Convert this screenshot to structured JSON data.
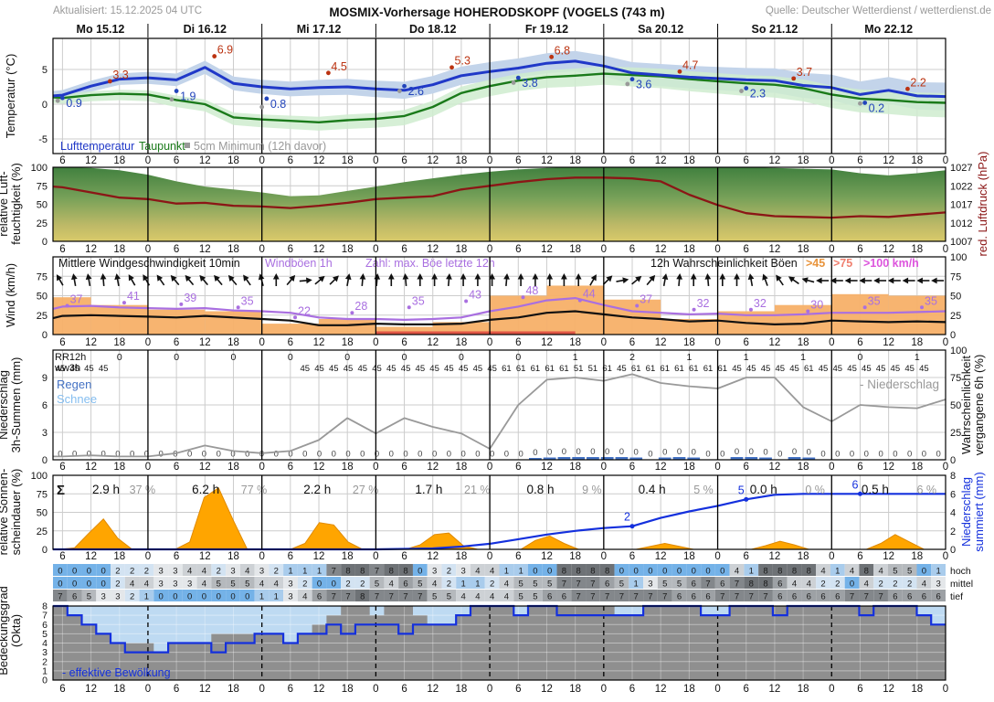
{
  "header": {
    "updated": "Aktualisiert: 15.12.2025 04 UTC",
    "title": "MOSMIX-Vorhersage HOHERODSKOPF (VOGELS (743 m)",
    "source": "Quelle: Deutscher Wetterdienst / wetterdienst.de"
  },
  "chart_data": {
    "type": "line",
    "x_axis": {
      "start_hour": 4,
      "end_hour": 192,
      "hour_tick_labels": [
        "6",
        "12",
        "18",
        "0"
      ]
    },
    "days": [
      "Mo 15.12",
      "Di 16.12",
      "Mi 17.12",
      "Do 18.12",
      "Fr 19.12",
      "Sa 20.12",
      "So 21.12",
      "Mo 22.12"
    ],
    "panels": {
      "temperature": {
        "ylabel": "Temperatur (°C)",
        "yticks": [
          5,
          0,
          -5
        ],
        "legend": {
          "air": "Lufttemperatur",
          "dew": "Taupunkt",
          "ground": "5cm Minimum (12h davor)"
        },
        "colors": {
          "air": "#2038c8",
          "dew": "#1a7a1a",
          "air_band": "#c3d4ea",
          "dew_band": "#cfeccf",
          "max": "#bb3311",
          "min": "#2244bb",
          "ground": "#999999"
        },
        "air_temp_6h": [
          1.2,
          1.3,
          2.6,
          3.6,
          3.8,
          3.5,
          5.3,
          3.0,
          2.5,
          2.2,
          2.4,
          2.5,
          2.2,
          2.0,
          2.8,
          4.1,
          4.7,
          5.2,
          5.9,
          6.2,
          5.5,
          4.5,
          4.2,
          3.9,
          3.7,
          3.5,
          3.4,
          2.7,
          2.4,
          1.4,
          2.0,
          1.2,
          1.1
        ],
        "dew_point_6h": [
          1.0,
          0.9,
          1.3,
          1.5,
          1.4,
          0.6,
          0.0,
          -1.9,
          -2.2,
          -2.4,
          -2.6,
          -2.3,
          -2.1,
          -1.7,
          -0.4,
          1.6,
          2.6,
          3.4,
          3.9,
          4.1,
          4.4,
          4.2,
          4.0,
          3.6,
          3.3,
          3.0,
          2.8,
          2.3,
          1.4,
          0.8,
          0.6,
          0.3,
          0.2
        ],
        "daily_max": {
          "t": [
            16,
            38,
            62,
            88,
            109,
            136,
            160,
            184
          ],
          "v": [
            3.3,
            6.9,
            4.5,
            5.3,
            6.8,
            4.7,
            3.7,
            2.2
          ]
        },
        "daily_min": {
          "t": [
            6,
            30,
            49,
            78,
            102,
            126,
            150,
            175
          ],
          "v": [
            0.9,
            1.9,
            0.8,
            2.6,
            3.8,
            3.6,
            2.3,
            0.2
          ]
        },
        "ground_min_5cm": {
          "t": [
            5,
            29,
            48,
            77,
            101,
            125,
            149,
            174
          ],
          "v": [
            0.5,
            0.7,
            -0.4,
            1.9,
            3.1,
            2.9,
            1.9,
            0.1
          ]
        }
      },
      "humidity_pressure": {
        "ylabel_left": [
          "relative Luft-",
          "feuchtigkeit (%)"
        ],
        "yticks_left": [
          0,
          25,
          50,
          75,
          100
        ],
        "ylabel_right": "red. Luftdruck (hPa)",
        "yticks_right": [
          1027,
          1022,
          1017,
          1012,
          1007
        ],
        "colors": {
          "pressure": "#8b1616",
          "fill_top": "#41803f",
          "fill_mid": "#75a058",
          "fill_low": "#bdb967",
          "fill_bottom": "#d9ca6a"
        },
        "humidity_6h": [
          100,
          100,
          99,
          96,
          90,
          81,
          74,
          70,
          66,
          61,
          62,
          68,
          74,
          80,
          85,
          90,
          94,
          97,
          99,
          100,
          100,
          100,
          100,
          100,
          100,
          100,
          99,
          98,
          97,
          92,
          89,
          92,
          96
        ],
        "pressure_6h": [
          1021.8,
          1021.6,
          1020.2,
          1018.8,
          1018.4,
          1017.2,
          1017.4,
          1016.6,
          1016.4,
          1016.0,
          1016.6,
          1017.4,
          1018.4,
          1018.8,
          1019.2,
          1021.0,
          1022.0,
          1023.0,
          1023.8,
          1024.2,
          1024.2,
          1024.0,
          1023.2,
          1019.6,
          1016.8,
          1014.6,
          1013.8,
          1013.6,
          1013.4,
          1013.8,
          1013.6,
          1014.2,
          1014.8
        ]
      },
      "wind": {
        "ylabel": "Wind (km/h)",
        "yticks_left": [
          0,
          25,
          50,
          75
        ],
        "yticks_right": [
          0,
          25,
          50,
          75,
          100
        ],
        "legend": {
          "mean": "Mittlere Windgeschwindigkeit 10min",
          "gust": "Windböen 1h",
          "number": "Zahl: max. Böe letzte 12h",
          "prob": "12h Wahrscheinlichkeit Böen",
          "p45": ">45",
          "p75": ">75",
          "p100": ">100 km/h"
        },
        "colors": {
          "mean": "#111111",
          "gust": "#a96fe0",
          "bar45": "#f7b068",
          "bar75": "#e05545",
          "p100": "#dd55dd"
        },
        "mean_6h": [
          21,
          24,
          25,
          24,
          23,
          22,
          24,
          22,
          20,
          18,
          12,
          12,
          14,
          13,
          13,
          14,
          19,
          22,
          28,
          30,
          26,
          22,
          20,
          17,
          18,
          15,
          13,
          14,
          18,
          17,
          16,
          17,
          16
        ],
        "gust_6h": [
          33,
          36,
          37,
          35,
          34,
          33,
          34,
          31,
          30,
          28,
          22,
          20,
          20,
          19,
          20,
          22,
          30,
          36,
          44,
          47,
          38,
          30,
          28,
          26,
          27,
          25,
          25,
          26,
          28,
          28,
          28,
          29,
          30
        ],
        "max_gust_12h_labels": {
          "t": [
            7,
            19,
            31,
            43,
            55,
            67,
            79,
            91,
            103,
            115,
            127,
            139,
            151,
            163,
            175,
            187
          ],
          "v": [
            37,
            41,
            39,
            35,
            22,
            28,
            35,
            43,
            48,
            44,
            37,
            32,
            32,
            30,
            35,
            35
          ]
        },
        "prob_gust45_12h_steps": [
          48,
          38,
          32,
          30,
          14,
          20,
          10,
          16,
          50,
          63,
          45,
          20,
          30,
          38,
          52,
          50
        ],
        "prob_gust75_strip": {
          "t0": 72,
          "t1": 114
        },
        "direction_deg_3h": [
          -30,
          -10,
          -10,
          -5,
          -10,
          -30,
          -30,
          -35,
          -40,
          -40,
          -40,
          -40,
          -40,
          -35,
          -15,
          0,
          40,
          85,
          50,
          45,
          10,
          5,
          5,
          0,
          -5,
          0,
          0,
          5,
          0,
          0,
          0,
          5,
          0,
          0,
          0,
          0,
          0,
          30,
          45,
          80,
          50,
          40,
          10,
          5,
          0,
          -5,
          0,
          0,
          -10,
          -20,
          -35,
          -55,
          -75,
          -90,
          -90,
          -90,
          -90,
          -90,
          -90,
          -90,
          -90,
          -90
        ]
      },
      "precipitation": {
        "ylabel_left": [
          "Niederschlag",
          "3h-Summen (mm)"
        ],
        "yticks_left": [
          0,
          3,
          6,
          9
        ],
        "ylabel_right": [
          "Wahrscheinlichkeit",
          "vergangene 6h (%)"
        ],
        "yticks_right": [
          100,
          75,
          50,
          25,
          0
        ],
        "legend": {
          "rain": "Regen",
          "snow": "Schnee",
          "prob": "- Niederschlag"
        },
        "colors": {
          "rain": "#4472c4",
          "snow": "#85bef0",
          "prob": "#999999"
        },
        "rr12h": {
          "label": "RR12h",
          "t": [
            18,
            30,
            42,
            54,
            66,
            78,
            90,
            102,
            114,
            126,
            138,
            150,
            162,
            174,
            186
          ],
          "v": [
            "0",
            "0",
            "0",
            "0",
            "0",
            "0",
            "0",
            "0",
            "1",
            "2",
            "1",
            "1",
            "1",
            "0",
            "1"
          ]
        },
        "ww3h": {
          "label": "ww3h",
          "cells": [
            "45",
            "45",
            "45",
            "45",
            null,
            null,
            null,
            null,
            null,
            null,
            null,
            null,
            null,
            null,
            null,
            null,
            null,
            "45",
            "45",
            "45",
            "45",
            "45",
            "45",
            "45",
            "45",
            "45",
            "45",
            "45",
            "45",
            "45",
            "45",
            "61",
            "61",
            "61",
            "61",
            "61",
            "51",
            "51",
            "61",
            "45",
            "61",
            "61",
            "61",
            "61",
            "61",
            "61",
            "61",
            "45",
            "45",
            "45",
            "45",
            "45",
            "61",
            "45",
            "45",
            "45",
            "45",
            "45",
            "45",
            "45",
            "45",
            null
          ]
        },
        "probability_6h": [
          3,
          3,
          4,
          3,
          3,
          6,
          13,
          8,
          6,
          8,
          18,
          38,
          24,
          38,
          30,
          24,
          10,
          50,
          73,
          75,
          72,
          78,
          70,
          67,
          65,
          75,
          75,
          48,
          35,
          50,
          48,
          47,
          55
        ],
        "rain_bars_3h": {
          "idx": [
            33,
            34,
            35,
            36,
            37,
            38,
            39,
            40,
            42,
            43,
            44,
            47,
            48,
            49,
            51,
            52
          ],
          "mm": [
            0.2,
            0.25,
            0.3,
            0.3,
            0.3,
            0.3,
            0.3,
            0.25,
            0.25,
            0.3,
            0.25,
            0.3,
            0.3,
            0.25,
            0.3,
            0.25
          ]
        },
        "amount_label": "0"
      },
      "sunshine": {
        "ylabel_left": [
          "relative Sonnen-",
          "scheindauer (%)"
        ],
        "yticks_left": [
          0,
          25,
          50,
          75,
          100
        ],
        "ylabel_right": [
          "Niederschlag",
          "summiert (mm)"
        ],
        "yticks_right": [
          8,
          6,
          4,
          2,
          0
        ],
        "sigma": "Σ",
        "colors": {
          "sun": "#ffa500",
          "sun_edge": "#e08a00",
          "cum": "#1430dd"
        },
        "relative_sunshine_3h": [
          0,
          2,
          22,
          41,
          15,
          0,
          0,
          0,
          0,
          10,
          70,
          83,
          40,
          0,
          0,
          0,
          0,
          8,
          36,
          33,
          10,
          0,
          0,
          0,
          0,
          6,
          20,
          22,
          5,
          0,
          0,
          0,
          0,
          12,
          18,
          8,
          0,
          0,
          0,
          0,
          0,
          4,
          8,
          4,
          0,
          0,
          0,
          0,
          0,
          5,
          11,
          6,
          0,
          0,
          0,
          0,
          0,
          8,
          20,
          10,
          0,
          0
        ],
        "daily_sums": [
          {
            "dur": "2.9 h",
            "pct": "37 %"
          },
          {
            "dur": "6.2 h",
            "pct": "77 %"
          },
          {
            "dur": "2.2 h",
            "pct": "27 %"
          },
          {
            "dur": "1.7 h",
            "pct": "21 %"
          },
          {
            "dur": "0.8 h",
            "pct": "9 %"
          },
          {
            "dur": "0.4 h",
            "pct": "5 %"
          },
          {
            "dur": "0.0 h",
            "pct": "0 %"
          },
          {
            "dur": "0.5 h",
            "pct": "6 %"
          }
        ],
        "cumulative_precip_6h": [
          0,
          0,
          0,
          0,
          0,
          0,
          0,
          0,
          0,
          0,
          0,
          0,
          0,
          0.05,
          0.1,
          0.3,
          0.6,
          1.1,
          1.6,
          2.0,
          2.3,
          2.5,
          3.4,
          4.1,
          4.7,
          5.4,
          5.9,
          6.0,
          6.0,
          6.0,
          6.0,
          6.0,
          6.0
        ],
        "cum_dots": {
          "t": [
            126,
            150,
            174
          ],
          "v": [
            2.5,
            5.4,
            6.0
          ],
          "labels": [
            "2",
            "5",
            "6"
          ]
        }
      },
      "clouds": {
        "ylabel_left": [
          "Bedeckungsgrad",
          "(Okta)"
        ],
        "yticks_left": [
          0,
          1,
          2,
          3,
          4,
          5,
          6,
          7,
          8
        ],
        "row_labels": [
          "hoch",
          "mittel",
          "tief"
        ],
        "legend": "- effektive Bewölkung",
        "colors": {
          "line": "#1430dd",
          "sky": "#bedaf2",
          "cloud": "#8f8f8f"
        },
        "okta_cell_colors": [
          "#74b2e8",
          "#a9ccec",
          "#d3e3f2",
          "#e4e7ea",
          "#cdd1d5",
          "#b5b9bd",
          "#9da1a5",
          "#83878b",
          "#6e7276"
        ],
        "high_3h": [
          0,
          0,
          0,
          0,
          2,
          2,
          2,
          3,
          3,
          4,
          4,
          2,
          3,
          4,
          3,
          2,
          1,
          1,
          1,
          7,
          8,
          8,
          7,
          8,
          8,
          0,
          3,
          2,
          3,
          4,
          4,
          1,
          1,
          0,
          0,
          8,
          8,
          8,
          8,
          0,
          0,
          0,
          0,
          0,
          0,
          0,
          0,
          4,
          1,
          8,
          8,
          8,
          8,
          4,
          1,
          4,
          8,
          4,
          5,
          5,
          0,
          1
        ],
        "middle_3h": [
          0,
          0,
          0,
          0,
          2,
          4,
          4,
          3,
          3,
          3,
          4,
          5,
          5,
          5,
          4,
          4,
          3,
          2,
          0,
          0,
          2,
          2,
          5,
          4,
          6,
          5,
          4,
          2,
          1,
          1,
          2,
          4,
          5,
          5,
          5,
          7,
          7,
          7,
          6,
          5,
          1,
          3,
          5,
          5,
          6,
          7,
          6,
          7,
          8,
          8,
          6,
          4,
          4,
          2,
          2,
          0,
          4,
          2,
          2,
          2,
          4,
          3
        ],
        "low_3h": [
          7,
          6,
          5,
          3,
          3,
          2,
          1,
          0,
          0,
          0,
          0,
          0,
          0,
          0,
          1,
          1,
          3,
          4,
          6,
          7,
          7,
          8,
          7,
          7,
          7,
          7,
          5,
          5,
          4,
          4,
          4,
          4,
          5,
          5,
          6,
          6,
          7,
          7,
          7,
          7,
          7,
          7,
          7,
          6,
          6,
          6,
          7,
          7,
          7,
          7,
          6,
          6,
          6,
          6,
          6,
          7,
          7,
          7,
          6,
          6,
          6,
          6
        ],
        "effective_3h": [
          8,
          7,
          6,
          5,
          4,
          3,
          3,
          3,
          4,
          4,
          4,
          3,
          4,
          4,
          5,
          5,
          4,
          5,
          5,
          6,
          5,
          6,
          6,
          6,
          5,
          6,
          6,
          6,
          7,
          8,
          8,
          8,
          7,
          8,
          8,
          7,
          7,
          7,
          7,
          7,
          7,
          8,
          8,
          8,
          8,
          7,
          7,
          8,
          8,
          8,
          7,
          8,
          8,
          8,
          8,
          8,
          7,
          8,
          8,
          8,
          7,
          6
        ]
      }
    }
  }
}
